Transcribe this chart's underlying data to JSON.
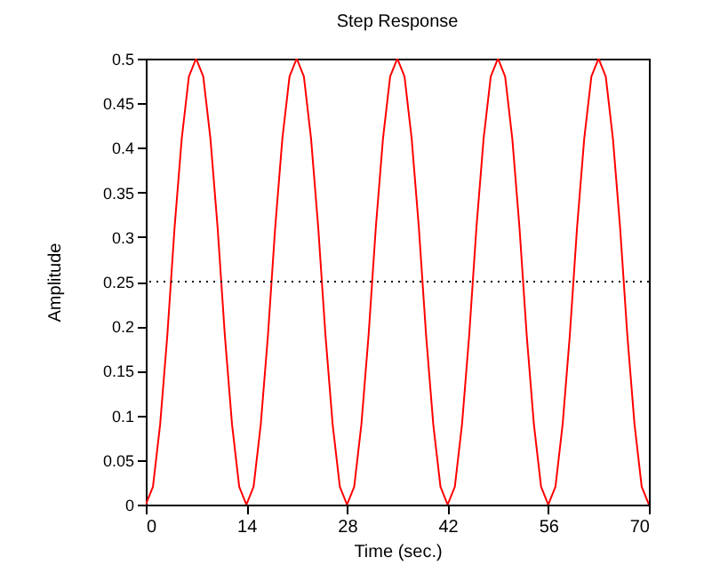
{
  "chart_data": {
    "type": "line",
    "title": "Step Response",
    "xlabel": "Time (sec.)",
    "ylabel": "Amplitude",
    "x": [
      0,
      1,
      2,
      3,
      4,
      5,
      6,
      7,
      8,
      9,
      10,
      11,
      12,
      13,
      14,
      15,
      16,
      17,
      18,
      19,
      20,
      21,
      22,
      23,
      24,
      25,
      26,
      27,
      28,
      29,
      30,
      31,
      32,
      33,
      34,
      35,
      36,
      37,
      38,
      39,
      40,
      41,
      42,
      43,
      44,
      45,
      46,
      47,
      48,
      49,
      50,
      51,
      52,
      53,
      54,
      55,
      56,
      57,
      58,
      59,
      60,
      61,
      62,
      63,
      64,
      65,
      66,
      67,
      68,
      69,
      70
    ],
    "series": [
      {
        "color": "#ff0000",
        "values": [
          0,
          0.02,
          0.09,
          0.19,
          0.31,
          0.41,
          0.48,
          0.5,
          0.48,
          0.41,
          0.31,
          0.19,
          0.09,
          0.02,
          0,
          0.02,
          0.09,
          0.19,
          0.31,
          0.41,
          0.48,
          0.5,
          0.48,
          0.41,
          0.31,
          0.19,
          0.09,
          0.02,
          0,
          0.02,
          0.09,
          0.19,
          0.31,
          0.41,
          0.48,
          0.5,
          0.48,
          0.41,
          0.31,
          0.19,
          0.09,
          0.02,
          0,
          0.02,
          0.09,
          0.19,
          0.31,
          0.41,
          0.48,
          0.5,
          0.48,
          0.41,
          0.31,
          0.19,
          0.09,
          0.02,
          0,
          0.02,
          0.09,
          0.19,
          0.31,
          0.41,
          0.48,
          0.5,
          0.48,
          0.41,
          0.31,
          0.19,
          0.09,
          0.02,
          0
        ]
      }
    ],
    "xlim": [
      0,
      70
    ],
    "xticks": [
      0,
      14,
      28,
      42,
      56,
      70
    ],
    "ylim": [
      0,
      0.5
    ],
    "yticks": [
      0,
      0.05,
      0.1,
      0.15,
      0.2,
      0.25,
      0.3,
      0.35,
      0.4,
      0.45,
      0.5
    ],
    "ref_lines": [
      {
        "axis": "y",
        "value": 0.25,
        "color": "#000000",
        "line_style": "dotted"
      }
    ]
  }
}
